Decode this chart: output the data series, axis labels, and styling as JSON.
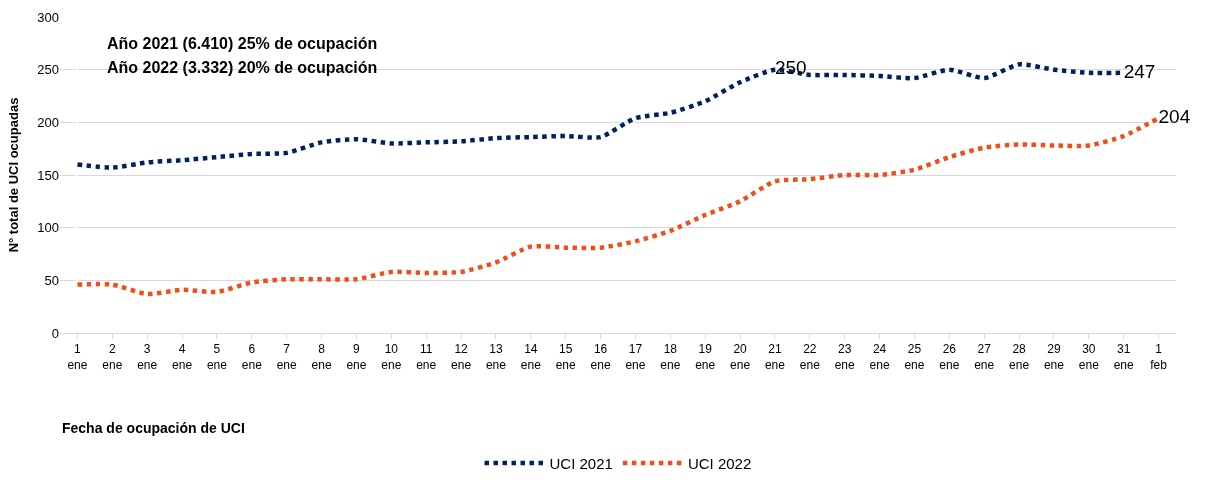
{
  "chart_data": {
    "type": "line",
    "xlabel": "Fecha de ocupación de UCI",
    "ylabel": "N° total de UCI ocupadas",
    "annotations": [
      "Año 2021 (6.410) 25% de ocupación",
      "Año 2022 (3.332) 20% de ocupación"
    ],
    "categories": [
      "1 ene",
      "2 ene",
      "3 ene",
      "4 ene",
      "5 ene",
      "6 ene",
      "7 ene",
      "8 ene",
      "9 ene",
      "10 ene",
      "11 ene",
      "12 ene",
      "13 ene",
      "14 ene",
      "15 ene",
      "16 ene",
      "17 ene",
      "18 ene",
      "19 ene",
      "20 ene",
      "21 ene",
      "22 ene",
      "23 ene",
      "24 ene",
      "25 ene",
      "26 ene",
      "27 ene",
      "28 ene",
      "29 ene",
      "30 ene",
      "31 ene",
      "1 feb"
    ],
    "series": [
      {
        "name": "UCI 2021",
        "color": "#002060",
        "values": [
          160,
          157,
          162,
          164,
          167,
          170,
          171,
          181,
          184,
          180,
          181,
          182,
          185,
          186,
          187,
          186,
          204,
          209,
          220,
          238,
          250,
          245,
          245,
          244,
          242,
          250,
          242,
          255,
          250,
          247,
          247,
          null
        ],
        "value_labels": [
          null,
          null,
          null,
          null,
          null,
          null,
          null,
          null,
          null,
          null,
          null,
          null,
          null,
          null,
          null,
          null,
          null,
          null,
          null,
          null,
          "250",
          null,
          null,
          null,
          null,
          null,
          null,
          null,
          null,
          null,
          "247",
          null
        ]
      },
      {
        "name": "UCI 2022",
        "color": "#f04e1a",
        "values": [
          46,
          46,
          37,
          41,
          39,
          48,
          51,
          51,
          51,
          58,
          57,
          58,
          67,
          82,
          81,
          81,
          87,
          97,
          112,
          125,
          144,
          146,
          150,
          150,
          155,
          167,
          176,
          179,
          178,
          178,
          187,
          204
        ],
        "value_labels": [
          null,
          null,
          null,
          null,
          null,
          null,
          null,
          null,
          null,
          null,
          null,
          null,
          null,
          null,
          null,
          null,
          null,
          null,
          null,
          null,
          null,
          null,
          null,
          null,
          null,
          null,
          null,
          null,
          null,
          null,
          null,
          "204"
        ]
      }
    ],
    "ylim": [
      0,
      300
    ],
    "yticks": [
      0,
      50,
      100,
      150,
      200,
      250,
      300
    ],
    "grid": "y",
    "legend": "bottom",
    "marker": "none",
    "line_style": "dotted"
  }
}
